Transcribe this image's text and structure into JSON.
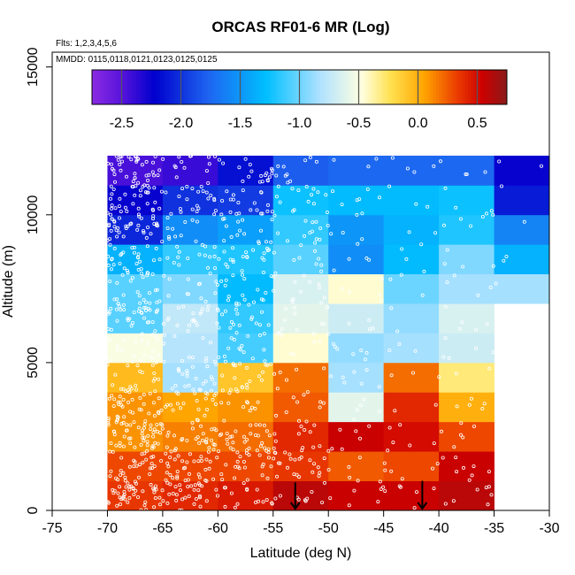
{
  "chart_data": {
    "type": "heatmap",
    "title": "ORCAS RF01-6 MR (Log)",
    "flights_note": "Flts: 1,2,3,4,5,6",
    "dates_note": "MMDD: 0115,0118,0121,0123,0125,0125",
    "xlabel": "Latitude (deg N)",
    "ylabel": "Altitude (m)",
    "xlim": [
      -75,
      -30
    ],
    "ylim": [
      0,
      15500
    ],
    "xticks": [
      -75,
      -70,
      -65,
      -60,
      -55,
      -50,
      -45,
      -40,
      -35,
      -30
    ],
    "xtick_labels": [
      "-75",
      "-70",
      "-65",
      "-60",
      "-55",
      "-50",
      "-45",
      "-40",
      "-35",
      "-30"
    ],
    "yticks": [
      0,
      5000,
      10000,
      15000
    ],
    "ytick_labels": [
      "0",
      "5000",
      "10000",
      "15000"
    ],
    "colorbar": {
      "min": -2.75,
      "max": 0.75,
      "ticks": [
        -2.5,
        -2.0,
        -1.5,
        -1.0,
        -0.5,
        0.0,
        0.5
      ],
      "tick_labels": [
        "-2.5",
        "-2.0",
        "-1.5",
        "-1.0",
        "-0.5",
        "0.0",
        "0.5"
      ]
    },
    "lat_bin_edges": [
      -70,
      -65,
      -60,
      -55,
      -50,
      -45,
      -40,
      -35,
      -30
    ],
    "alt_bin_edges": [
      0,
      1000,
      2000,
      3000,
      4000,
      5000,
      6000,
      7000,
      8000,
      9000,
      10000,
      11000,
      12000
    ],
    "values": [
      [
        0.35,
        0.4,
        0.45,
        0.6,
        0.55,
        0.55,
        0.6,
        null
      ],
      [
        0.3,
        0.3,
        0.3,
        0.35,
        0.25,
        0.3,
        0.55,
        null
      ],
      [
        0.1,
        0.15,
        0.2,
        0.4,
        0.55,
        0.5,
        0.3,
        null
      ],
      [
        0.1,
        0.05,
        0.1,
        0.25,
        -0.6,
        0.4,
        0.0,
        null
      ],
      [
        -0.05,
        -0.85,
        -0.1,
        0.2,
        -0.85,
        0.2,
        -0.3,
        null
      ],
      [
        -0.5,
        -0.8,
        -1.1,
        -0.45,
        -0.9,
        -0.85,
        -0.7,
        null
      ],
      [
        -1.05,
        -0.75,
        -1.15,
        -0.6,
        -0.7,
        -0.9,
        -0.65,
        null
      ],
      [
        -1.05,
        -0.95,
        -1.3,
        -0.65,
        -0.45,
        -1.0,
        -0.85,
        -0.85
      ],
      [
        -1.35,
        -1.15,
        -1.2,
        -1.05,
        -1.55,
        -1.3,
        -0.95,
        -1.35
      ],
      [
        -2.05,
        -1.55,
        -1.45,
        -1.15,
        -1.5,
        -1.35,
        -1.2,
        -1.6
      ],
      [
        -2.25,
        -2.0,
        -1.95,
        -1.25,
        -1.3,
        -1.3,
        -1.25,
        -2.1
      ],
      [
        -2.45,
        -2.4,
        -2.15,
        -1.8,
        -1.75,
        -1.75,
        -1.75,
        -2.25
      ]
    ],
    "arrows": [
      {
        "lat": -53.0,
        "alt_top": 950
      },
      {
        "lat": -41.5,
        "alt_top": 1000
      }
    ]
  }
}
